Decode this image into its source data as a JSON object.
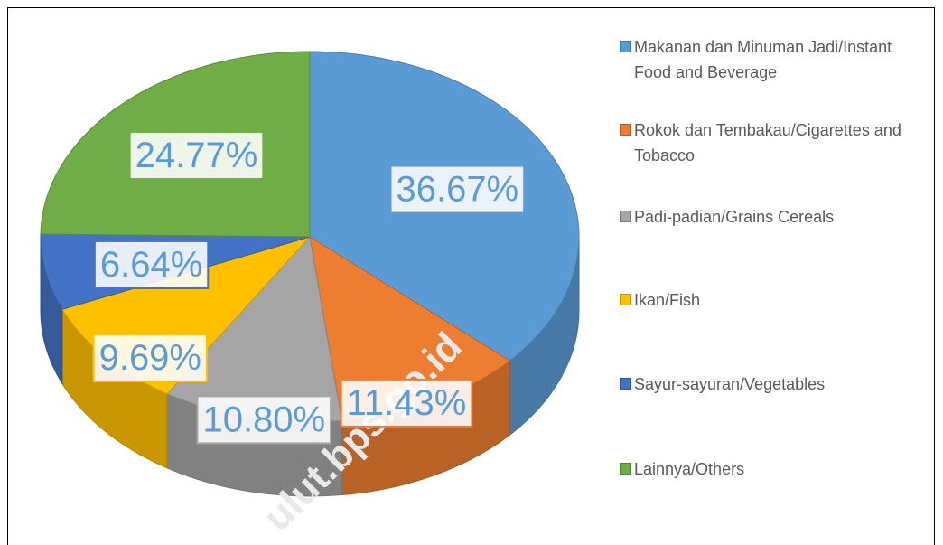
{
  "chart_data": {
    "type": "pie",
    "categories": [
      "Makanan dan Minuman Jadi/Instant Food and Beverage",
      "Rokok dan Tembakau/Cigarettes and Tobacco",
      "Padi-padian/Grains Cereals",
      "Ikan/Fish",
      "Sayur-sayuran/Vegetables",
      "Lainnya/Others"
    ],
    "values": [
      36.67,
      11.43,
      10.8,
      9.69,
      6.64,
      24.77
    ],
    "value_labels": [
      "36.67%",
      "11.43%",
      "10.80%",
      "9.69%",
      "6.64%",
      "24.77%"
    ],
    "colors": [
      "#5b9bd5",
      "#ed7d31",
      "#a5a5a5",
      "#ffc000",
      "#4472c4",
      "#70ad47"
    ],
    "legend": "right",
    "watermark": "ulut.bps.go.id"
  }
}
